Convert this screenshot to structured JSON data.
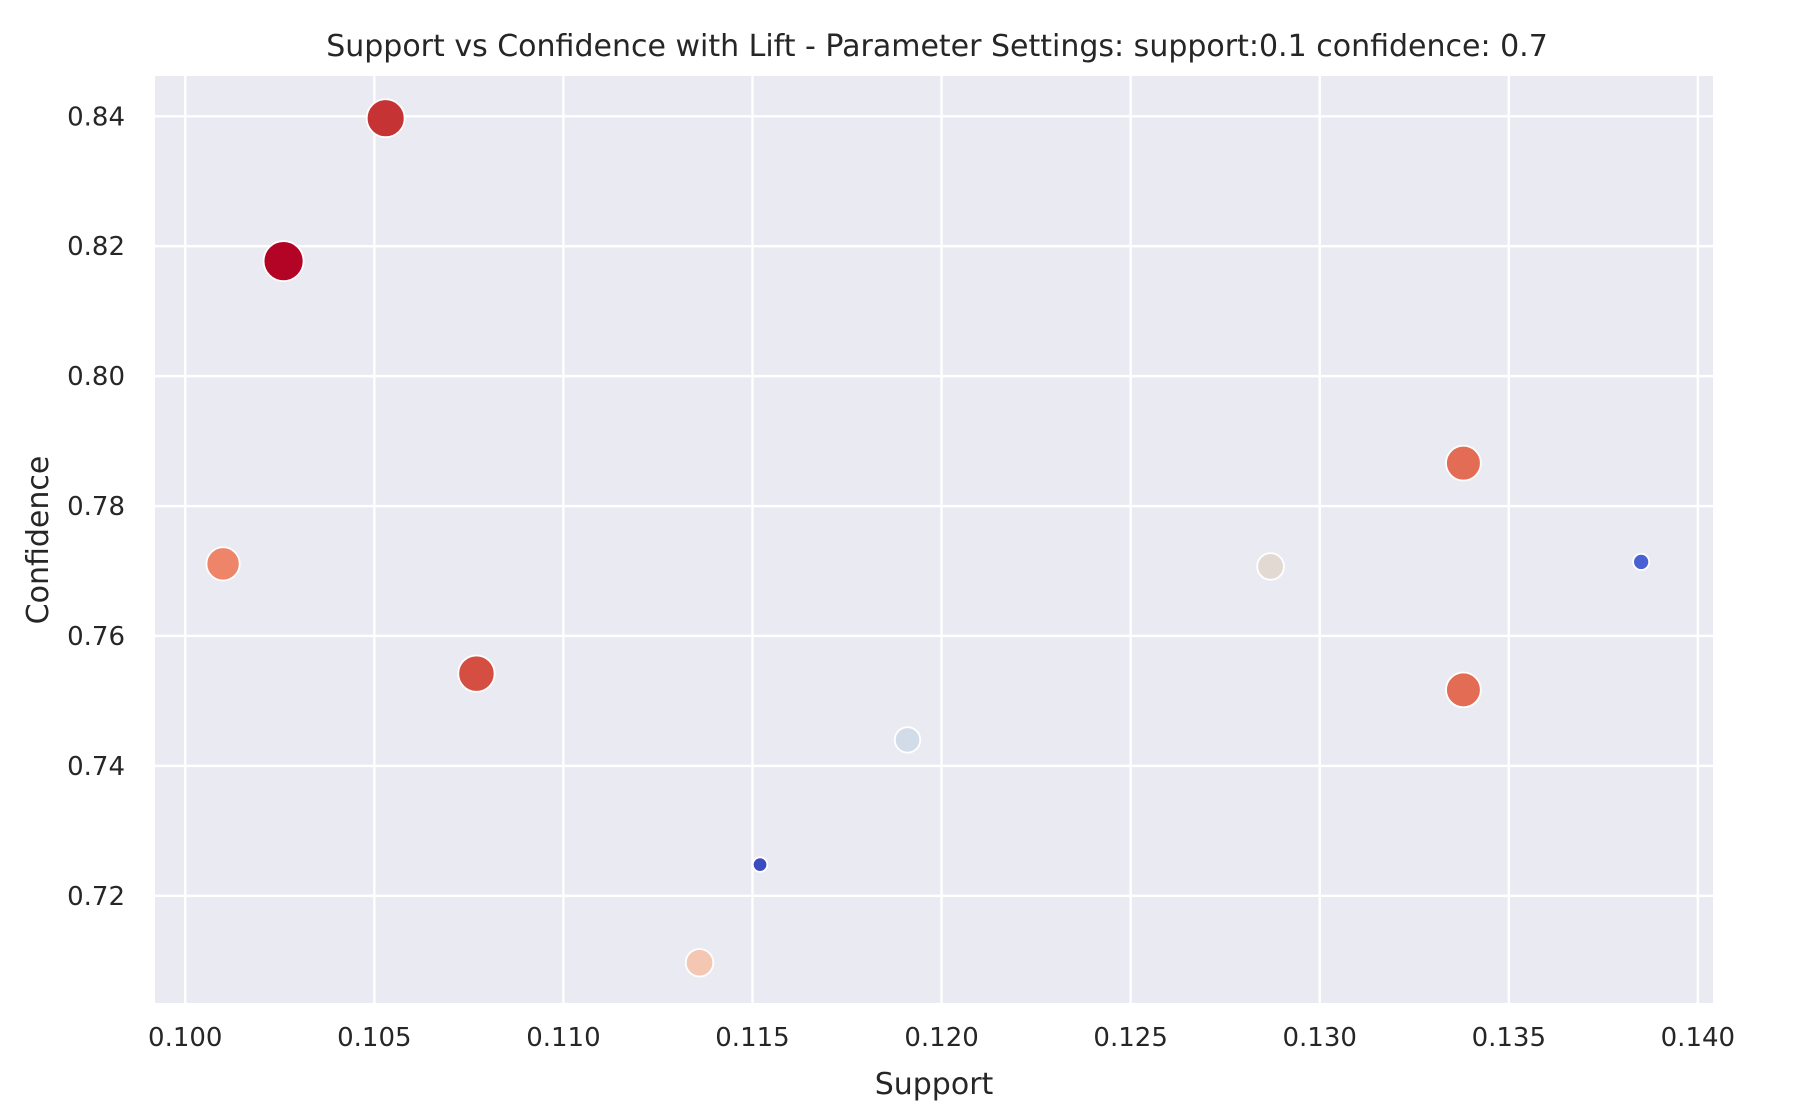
{
  "chart_data": {
    "type": "scatter",
    "title": "Support vs Confidence with Lift - Parameter Settings: support:0.1 confidence: 0.7",
    "xlabel": "Support",
    "ylabel": "Confidence",
    "xlim": [
      0.0992,
      0.1404
    ],
    "ylim": [
      0.7035,
      0.8462
    ],
    "xticks": [
      0.1,
      0.105,
      0.11,
      0.115,
      0.12,
      0.125,
      0.13,
      0.135,
      0.14
    ],
    "xtick_labels": [
      "0.100",
      "0.105",
      "0.110",
      "0.115",
      "0.120",
      "0.125",
      "0.130",
      "0.135",
      "0.140"
    ],
    "yticks": [
      0.72,
      0.74,
      0.76,
      0.78,
      0.8,
      0.82,
      0.84
    ],
    "ytick_labels": [
      "0.72",
      "0.74",
      "0.76",
      "0.78",
      "0.80",
      "0.82",
      "0.84"
    ],
    "grid": true,
    "size_and_color_encoding": "lift",
    "colormap": "coolwarm",
    "points": [
      {
        "x": 0.1053,
        "y": 0.8397,
        "lift": 0.92,
        "color": "#c53334"
      },
      {
        "x": 0.1026,
        "y": 0.8177,
        "lift": 1.0,
        "color": "#b40426"
      },
      {
        "x": 0.101,
        "y": 0.7711,
        "lift": 0.74,
        "color": "#ee8468"
      },
      {
        "x": 0.1077,
        "y": 0.7542,
        "lift": 0.86,
        "color": "#d44e41"
      },
      {
        "x": 0.1136,
        "y": 0.7097,
        "lift": 0.52,
        "color": "#f3c7b1"
      },
      {
        "x": 0.1152,
        "y": 0.7248,
        "lift": 0.02,
        "color": "#3b4cc0"
      },
      {
        "x": 0.1191,
        "y": 0.744,
        "lift": 0.44,
        "color": "#d2dbe8"
      },
      {
        "x": 0.1287,
        "y": 0.7707,
        "lift": 0.49,
        "color": "#e3d9d3"
      },
      {
        "x": 0.1338,
        "y": 0.7866,
        "lift": 0.8,
        "color": "#e36c55"
      },
      {
        "x": 0.1338,
        "y": 0.7517,
        "lift": 0.8,
        "color": "#e36c55"
      },
      {
        "x": 0.1385,
        "y": 0.7714,
        "lift": 0.08,
        "color": "#4961d2"
      }
    ]
  }
}
